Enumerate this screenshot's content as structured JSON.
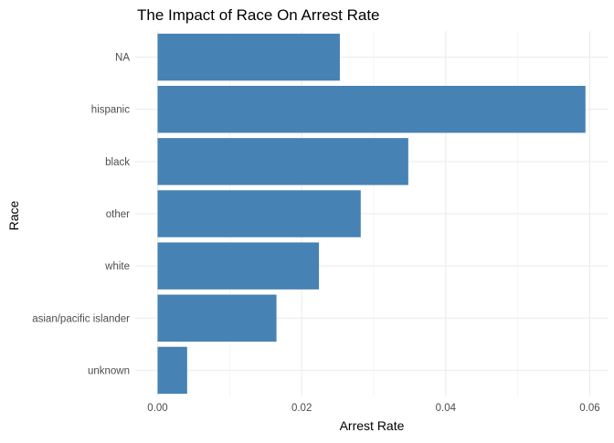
{
  "chart_data": {
    "type": "bar",
    "orientation": "horizontal",
    "title": "The Impact of Race On Arrest Rate",
    "xlabel": "Arrest Rate",
    "ylabel": "Race",
    "categories": [
      "NA",
      "hispanic",
      "black",
      "other",
      "white",
      "asian/pacific islander",
      "unknown"
    ],
    "values": [
      0.0253,
      0.0594,
      0.0348,
      0.0282,
      0.0224,
      0.0165,
      0.0041
    ],
    "xlim": [
      0,
      0.06
    ],
    "xticks": [
      0.0,
      0.02,
      0.04,
      0.06
    ],
    "xtick_labels": [
      "0.00",
      "0.02",
      "0.04",
      "0.06"
    ],
    "grid": true,
    "bar_color": "#4682B4"
  }
}
